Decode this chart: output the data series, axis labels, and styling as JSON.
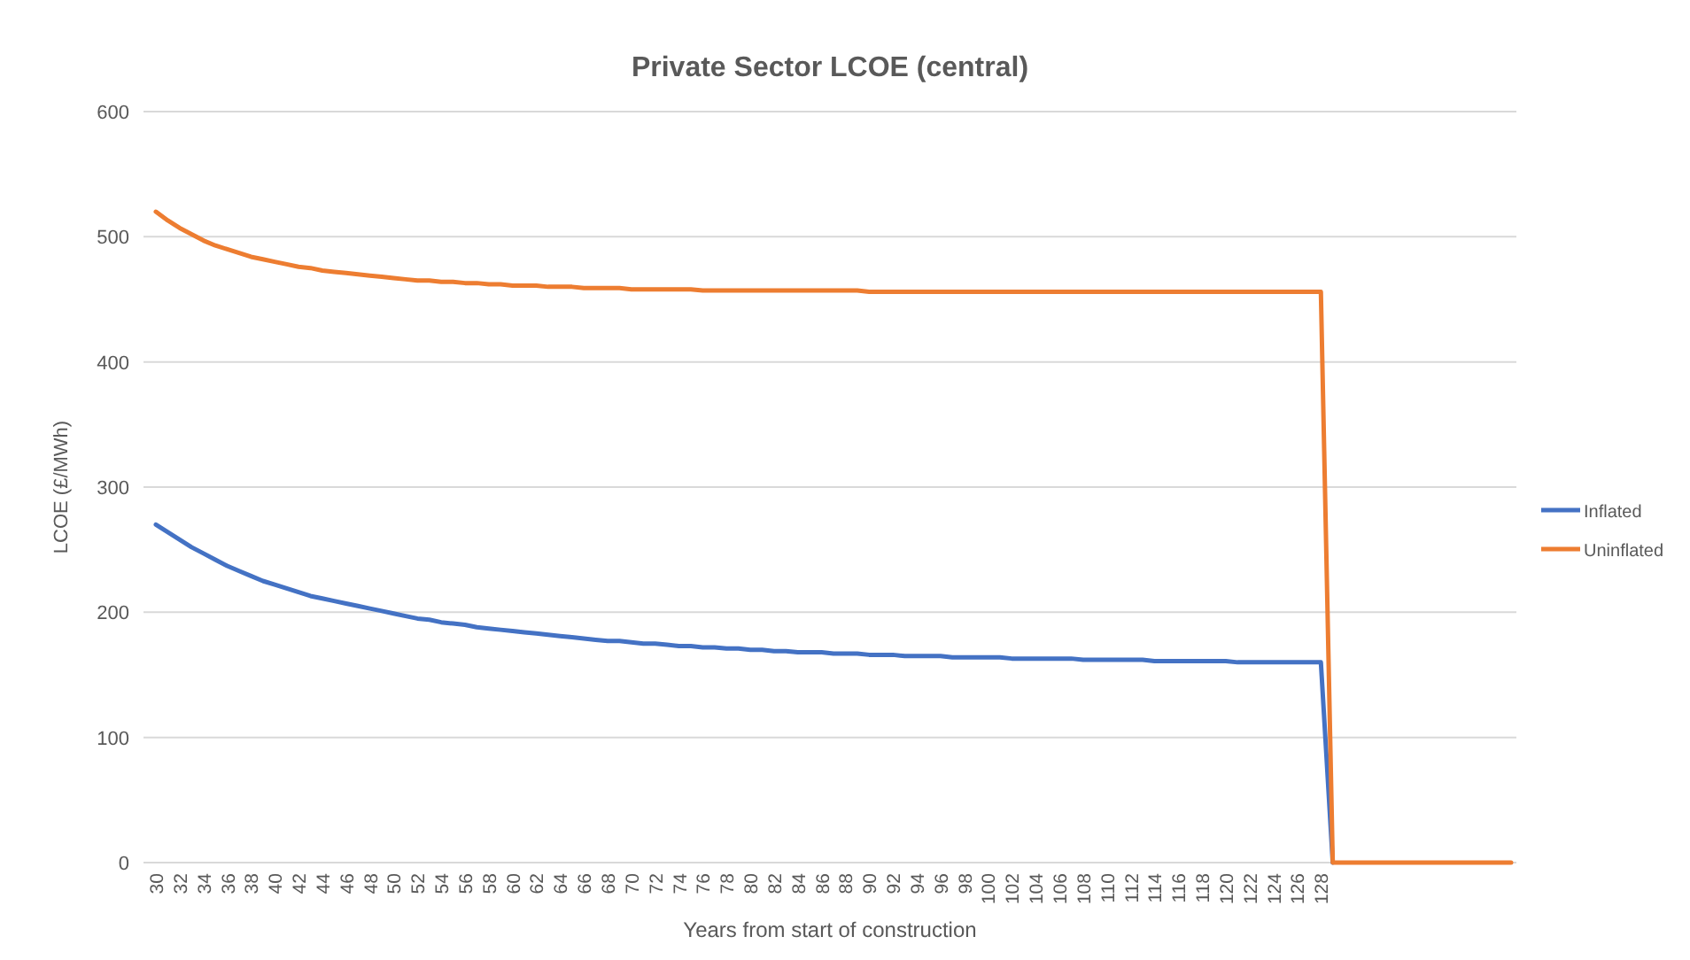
{
  "chart_data": {
    "type": "line",
    "title": "Private Sector LCOE (central)",
    "xlabel": "Years from start of construction",
    "ylabel": "LCOE (£/MWh)",
    "categories": [
      "30",
      null,
      "32",
      null,
      "34",
      null,
      "36",
      null,
      "38",
      null,
      "40",
      null,
      "42",
      null,
      "44",
      null,
      "46",
      null,
      "48",
      null,
      "50",
      null,
      "52",
      null,
      "54",
      null,
      "56",
      null,
      "58",
      null,
      "60",
      null,
      "62",
      null,
      "64",
      null,
      "66",
      null,
      "68",
      null,
      "70",
      null,
      "72",
      null,
      "74",
      null,
      "76",
      null,
      "78",
      null,
      "80",
      null,
      "82",
      null,
      "84",
      null,
      "86",
      null,
      "88",
      null,
      "90",
      null,
      "92",
      null,
      "94",
      null,
      "96",
      null,
      "98",
      null,
      "100",
      null,
      "102",
      null,
      "104",
      null,
      "106",
      null,
      "108",
      null,
      "110",
      null,
      "112",
      null,
      "114",
      null,
      "116",
      null,
      "118",
      null,
      "120",
      null,
      "122",
      null,
      "124",
      null,
      "126",
      null,
      "128",
      null,
      null,
      null,
      null,
      null,
      null,
      null,
      null,
      null,
      null,
      null,
      null,
      null,
      null,
      null,
      null
    ],
    "series": [
      {
        "name": "Inflated",
        "color": "#4472c4",
        "values": [
          270,
          264,
          258,
          252,
          247,
          242,
          237,
          233,
          229,
          225,
          222,
          219,
          216,
          213,
          211,
          209,
          207,
          205,
          203,
          201,
          199,
          197,
          195,
          194,
          192,
          191,
          190,
          188,
          187,
          186,
          185,
          184,
          183,
          182,
          181,
          180,
          179,
          178,
          177,
          177,
          176,
          175,
          175,
          174,
          173,
          173,
          172,
          172,
          171,
          171,
          170,
          170,
          169,
          169,
          168,
          168,
          168,
          167,
          167,
          167,
          166,
          166,
          166,
          165,
          165,
          165,
          165,
          164,
          164,
          164,
          164,
          164,
          163,
          163,
          163,
          163,
          163,
          163,
          162,
          162,
          162,
          162,
          162,
          162,
          161,
          161,
          161,
          161,
          161,
          161,
          161,
          160,
          160,
          160,
          160,
          160,
          160,
          160,
          160,
          0,
          null,
          null,
          null,
          null,
          null,
          null,
          null,
          null,
          null,
          null,
          null,
          null,
          null,
          null,
          null
        ]
      },
      {
        "name": "Uninflated",
        "color": "#ed7d31",
        "values": [
          520,
          513,
          507,
          502,
          497,
          493,
          490,
          487,
          484,
          482,
          480,
          478,
          476,
          475,
          473,
          472,
          471,
          470,
          469,
          468,
          467,
          466,
          465,
          465,
          464,
          464,
          463,
          463,
          462,
          462,
          461,
          461,
          461,
          460,
          460,
          460,
          459,
          459,
          459,
          459,
          458,
          458,
          458,
          458,
          458,
          458,
          457,
          457,
          457,
          457,
          457,
          457,
          457,
          457,
          457,
          457,
          457,
          457,
          457,
          457,
          456,
          456,
          456,
          456,
          456,
          456,
          456,
          456,
          456,
          456,
          456,
          456,
          456,
          456,
          456,
          456,
          456,
          456,
          456,
          456,
          456,
          456,
          456,
          456,
          456,
          456,
          456,
          456,
          456,
          456,
          456,
          456,
          456,
          456,
          456,
          456,
          456,
          456,
          456,
          0,
          0,
          0,
          0,
          0,
          0,
          0,
          0,
          0,
          0,
          0,
          0,
          0,
          0,
          0,
          0
        ]
      }
    ],
    "ylim": [
      0,
      600
    ],
    "yticks": [
      0,
      100,
      200,
      300,
      400,
      500,
      600
    ],
    "grid": "y",
    "legend": "right",
    "marker": "none",
    "line_style": "solid"
  }
}
